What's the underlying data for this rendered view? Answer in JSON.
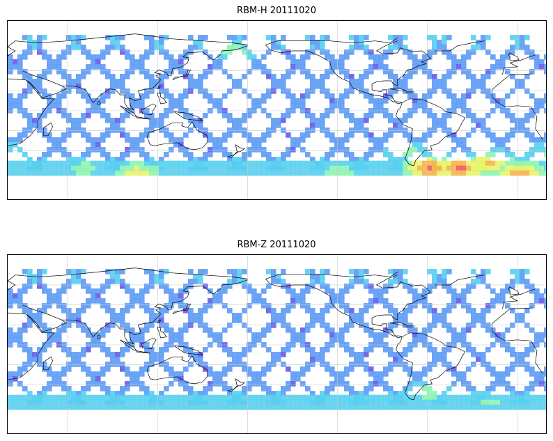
{
  "panels": [
    {
      "id": "rbm-h",
      "title": "RBM-H 20111020",
      "hot_regions": [
        {
          "lon": 70,
          "lat": -55,
          "level": 0.55
        },
        {
          "lon": 0,
          "lat": -60,
          "level": 0.9
        },
        {
          "lon": 105,
          "lat": -60,
          "level": 0.75
        },
        {
          "lon": 240,
          "lat": -60,
          "level": 0.6
        },
        {
          "lon": 300,
          "lat": -55,
          "level": 1.0
        },
        {
          "lon": 320,
          "lat": -55,
          "level": 1.0
        },
        {
          "lon": 340,
          "lat": -50,
          "level": 0.85
        },
        {
          "lon": 170,
          "lat": 62,
          "level": 0.55
        },
        {
          "lon": 20,
          "lat": -40,
          "level": 0.5
        },
        {
          "lon": 285,
          "lat": -40,
          "level": 0.55
        }
      ]
    },
    {
      "id": "rbm-z",
      "title": "RBM-Z 20111020",
      "hot_regions": [
        {
          "lon": 0,
          "lat": -58,
          "level": 0.45
        },
        {
          "lon": 300,
          "lat": -45,
          "level": 0.55
        },
        {
          "lon": 340,
          "lat": -55,
          "level": 0.5
        },
        {
          "lon": 260,
          "lat": -58,
          "level": 0.35
        }
      ]
    }
  ],
  "colormap": [
    "#6a5de8",
    "#5f9cf5",
    "#58d0f0",
    "#8ef5b4",
    "#e8f56a",
    "#f7b34a",
    "#f05a5a"
  ]
}
